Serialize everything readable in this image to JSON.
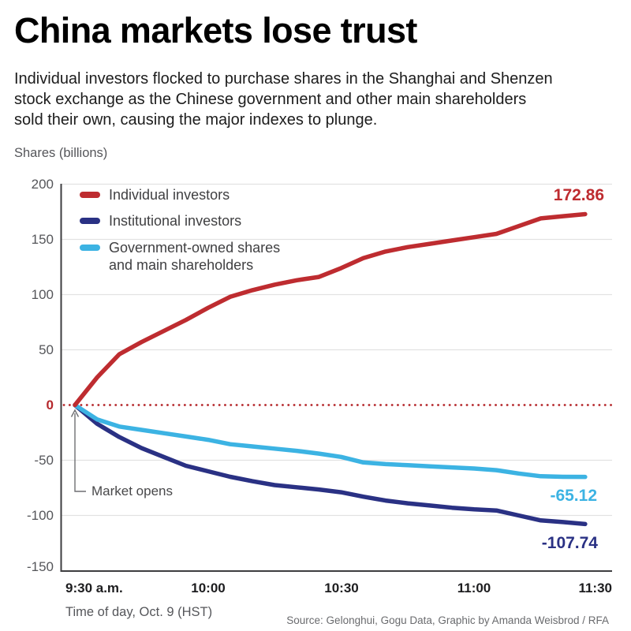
{
  "header": {
    "title": "China markets lose trust",
    "subtitle_lines": [
      "Individual investors flocked to purchase shares in the Shanghai and Shenzen",
      "stock exchange as the Chinese government and other main shareholders",
      "sold their own, causing the major indexes to plunge."
    ]
  },
  "chart_data": {
    "type": "line",
    "unit_label": "Shares (billions)",
    "x_axis_title": "Time of day, Oct. 9 (HST)",
    "x_tick_labels": [
      "9:30 a.m.",
      "10:00",
      "10:30",
      "11:00",
      "11:30"
    ],
    "y_ticks": [
      200,
      150,
      100,
      50,
      0,
      -50,
      -100,
      -150
    ],
    "ylim": [
      -150,
      200
    ],
    "grid": true,
    "legend_position": "top-left-inside",
    "zero_line_color": "#b5282c",
    "grid_color": "#e2e2e2",
    "axis_color": "#3e3e40",
    "annotation": "Market opens",
    "x_times": [
      "9:30",
      "9:35",
      "9:40",
      "9:45",
      "9:50",
      "9:55",
      "10:00",
      "10:05",
      "10:10",
      "10:15",
      "10:20",
      "10:25",
      "10:30",
      "10:35",
      "10:40",
      "10:45",
      "10:50",
      "10:55",
      "11:00",
      "11:05",
      "11:10",
      "11:15",
      "11:20",
      "11:25"
    ],
    "series": [
      {
        "id": "individual-investors",
        "legend_label": "Individual investors",
        "color": "#be2c30",
        "end_label": "172.86",
        "end_value": 172.86,
        "values": [
          0,
          25,
          46,
          57,
          67,
          77,
          88,
          98,
          104,
          109,
          113,
          116,
          124,
          133,
          139,
          143,
          146,
          149,
          152,
          155,
          162,
          169,
          171,
          172.86
        ]
      },
      {
        "id": "institutional-investors",
        "legend_label": "Institutional investors",
        "color": "#2a3184",
        "end_label": "-107.74",
        "end_value": -107.74,
        "values": [
          0,
          -17,
          -29,
          -39,
          -47,
          -55,
          -60,
          -65,
          -69,
          -72.5,
          -74.5,
          -76.5,
          -79,
          -83,
          -86.5,
          -89,
          -91,
          -93,
          -94.5,
          -95.5,
          -100,
          -104.5,
          -106,
          -107.74
        ]
      },
      {
        "id": "government-owned-shares",
        "legend_label": "Government-owned shares\nand main shareholders",
        "color": "#3cb3e3",
        "end_label": "-65.12",
        "end_value": -65.12,
        "values": [
          0,
          -13,
          -19.5,
          -22.5,
          -25.5,
          -28.5,
          -31.5,
          -35.5,
          -37.5,
          -39.5,
          -41.5,
          -44,
          -47,
          -52,
          -53.5,
          -54.5,
          -55.5,
          -56.5,
          -57.5,
          -59,
          -62,
          -64.5,
          -65,
          -65.12
        ]
      }
    ]
  },
  "footer": {
    "source": "Source: Gelonghui, Gogu Data, Graphic by Amanda Weisbrod / RFA"
  }
}
